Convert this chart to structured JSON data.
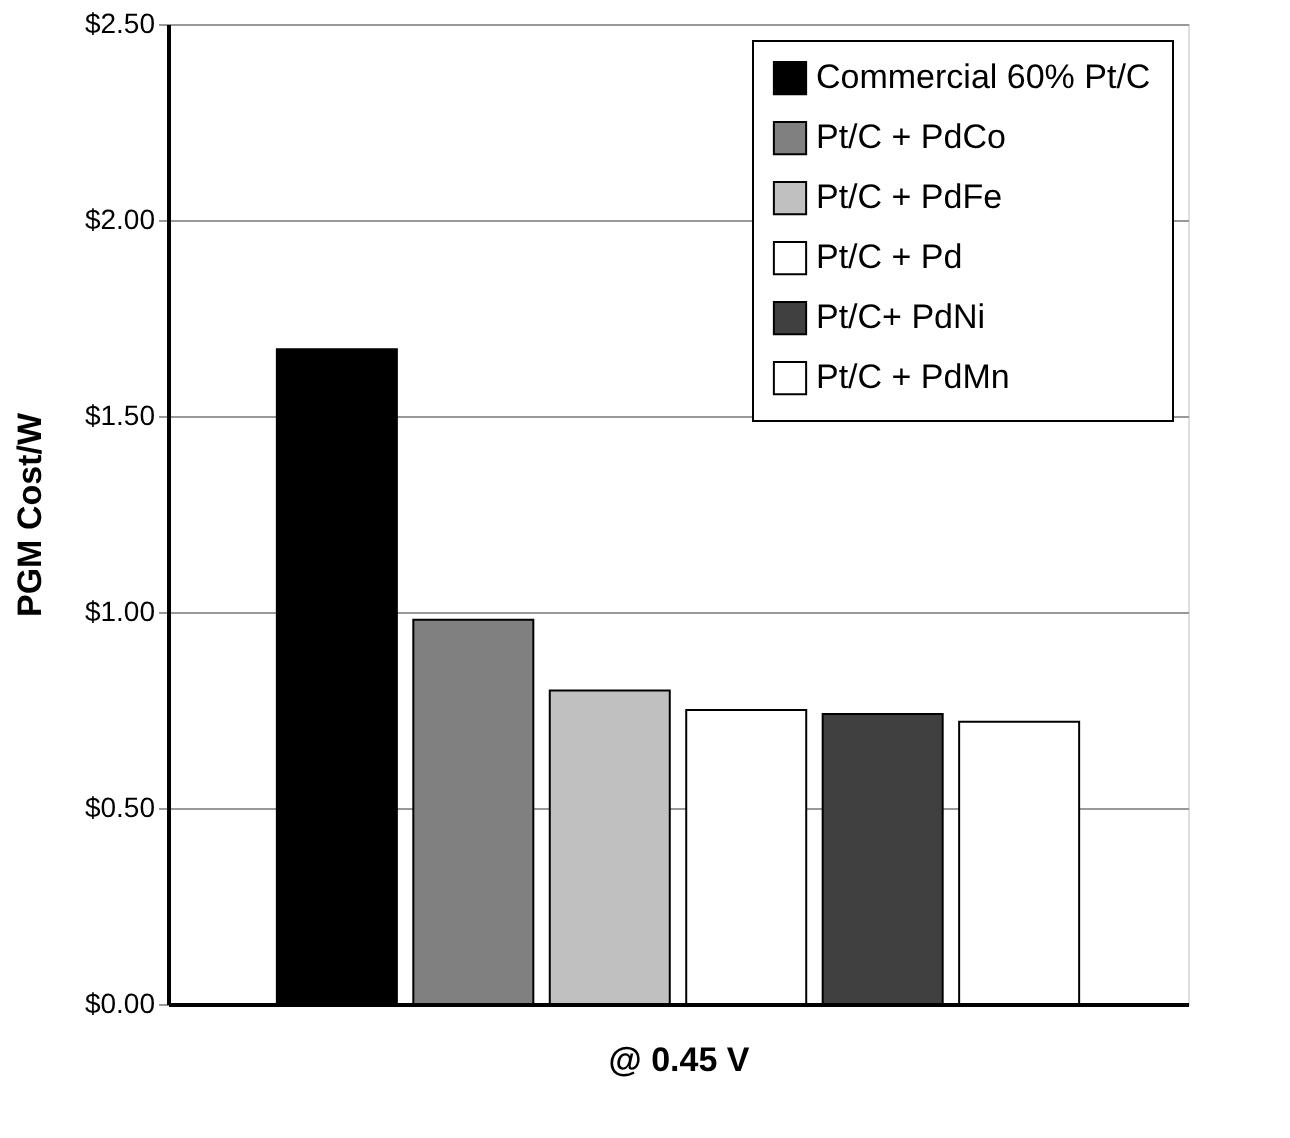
{
  "chart_data": {
    "type": "bar",
    "xlabel": "@ 0.45 V",
    "ylabel": "PGM Cost/W",
    "categories": [
      null
    ],
    "series": [
      {
        "name": "Commercial 60% Pt/C",
        "color": "#000000",
        "values": [
          1.67
        ]
      },
      {
        "name": "Pt/C + PdCo",
        "color": "#808080",
        "values": [
          0.98
        ]
      },
      {
        "name": "Pt/C + PdFe",
        "color": "#c0c0c0",
        "values": [
          0.8
        ]
      },
      {
        "name": "Pt/C + Pd",
        "color": "#ffffff",
        "values": [
          0.75
        ]
      },
      {
        "name": "Pt/C+ PdNi",
        "color": "#404040",
        "values": [
          0.74
        ]
      },
      {
        "name": "Pt/C + PdMn",
        "color": "#ffffff",
        "values": [
          0.72
        ]
      }
    ],
    "ylim": [
      0,
      2.5
    ],
    "yticks": [
      {
        "value": 0,
        "label": "$0.00"
      },
      {
        "value": 0.5,
        "label": "$0.50"
      },
      {
        "value": 1,
        "label": "$1.00"
      },
      {
        "value": 1.5,
        "label": "$1.50"
      },
      {
        "value": 2,
        "label": "$2.00"
      },
      {
        "value": 2.5,
        "label": "$2.50"
      }
    ],
    "grid": "y",
    "legend": "top right"
  }
}
